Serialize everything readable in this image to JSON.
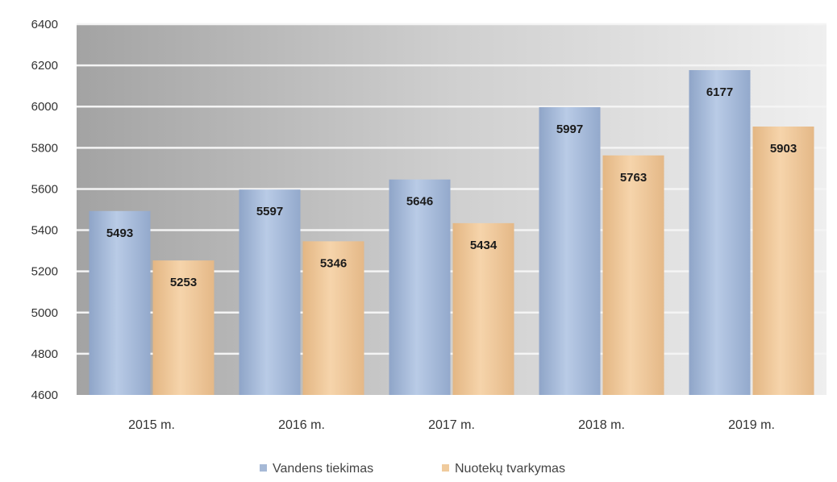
{
  "chart_data": {
    "type": "bar",
    "categories": [
      "2015 m.",
      "2016 m.",
      "2017 m.",
      "2018 m.",
      "2019 m."
    ],
    "series": [
      {
        "name": "Vandens tiekimas",
        "values": [
          5493,
          5597,
          5646,
          5997,
          6177
        ],
        "color": "#a6b9d6"
      },
      {
        "name": "Nuotekų tvarkymas",
        "values": [
          5253,
          5346,
          5434,
          5763,
          5903
        ],
        "color": "#f0cb9d"
      }
    ],
    "title": "",
    "xlabel": "",
    "ylabel": "",
    "ylim": [
      4600,
      6400
    ],
    "yticks": [
      4600,
      4800,
      5000,
      5200,
      5400,
      5600,
      5800,
      6000,
      6200,
      6400
    ],
    "grid": true,
    "legend_position": "bottom"
  }
}
